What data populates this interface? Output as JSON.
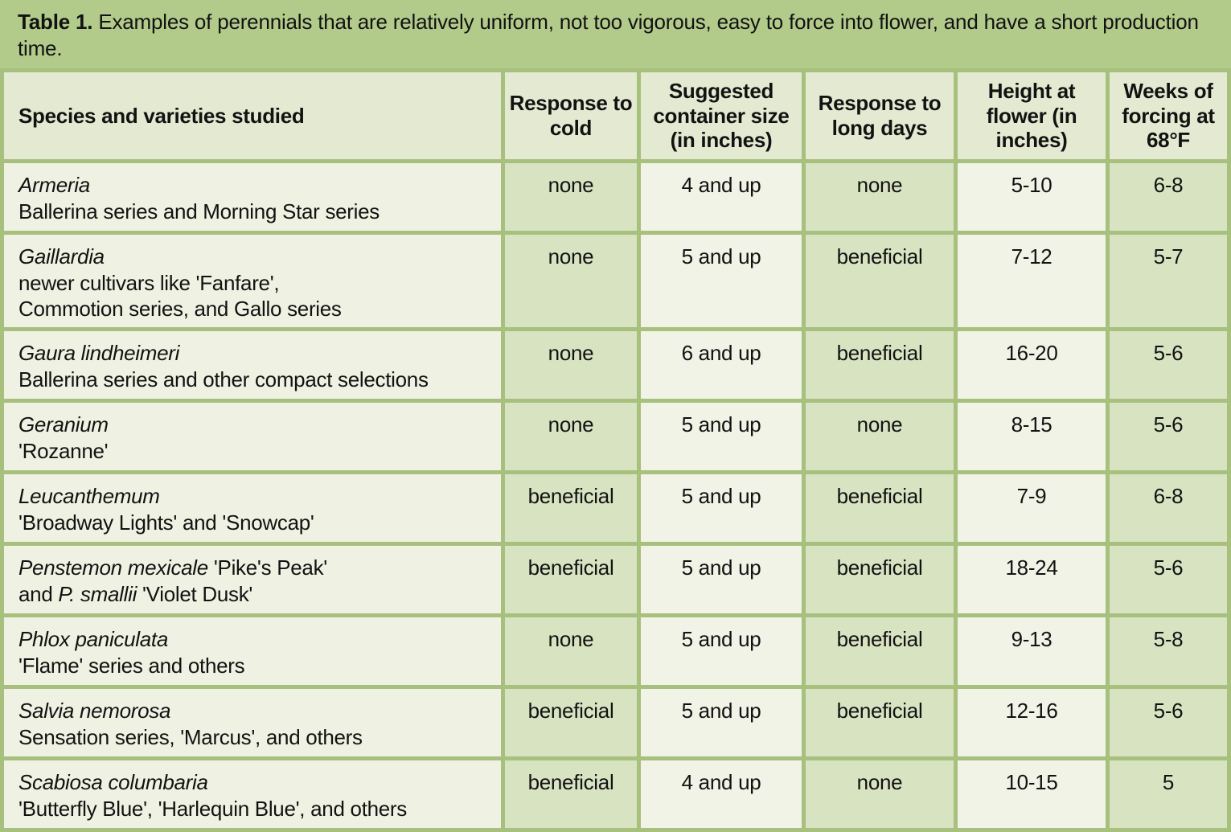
{
  "title": {
    "prefix": "Table 1.",
    "text": " Examples of perennials that are relatively uniform, not too vigorous, easy to force into flower, and have a short production time."
  },
  "table": {
    "columns": [
      {
        "key": "species",
        "label": "Species and varieties studied"
      },
      {
        "key": "cold",
        "label": "Response to cold"
      },
      {
        "key": "container",
        "label": "Suggested container size (in inches)"
      },
      {
        "key": "longdays",
        "label": "Response to long days"
      },
      {
        "key": "height",
        "label": "Height at flower (in inches)"
      },
      {
        "key": "weeks",
        "label": "Weeks of forcing at 68°F"
      }
    ],
    "rows": [
      {
        "species_lines": [
          [
            {
              "text": "Armeria",
              "italic": true
            }
          ],
          [
            {
              "text": "Ballerina series and Morning Star series",
              "italic": false
            }
          ]
        ],
        "cold": "none",
        "container": "4 and up",
        "longdays": "none",
        "height": "5-10",
        "weeks": "6-8"
      },
      {
        "species_lines": [
          [
            {
              "text": "Gaillardia",
              "italic": true
            }
          ],
          [
            {
              "text": "newer cultivars like 'Fanfare',",
              "italic": false
            }
          ],
          [
            {
              "text": "Commotion series, and Gallo series",
              "italic": false
            }
          ]
        ],
        "cold": "none",
        "container": "5 and up",
        "longdays": "beneficial",
        "height": "7-12",
        "weeks": "5-7"
      },
      {
        "species_lines": [
          [
            {
              "text": "Gaura lindheimeri",
              "italic": true
            }
          ],
          [
            {
              "text": "Ballerina series and other compact selections",
              "italic": false
            }
          ]
        ],
        "cold": "none",
        "container": "6 and up",
        "longdays": "beneficial",
        "height": "16-20",
        "weeks": "5-6"
      },
      {
        "species_lines": [
          [
            {
              "text": "Geranium",
              "italic": true
            }
          ],
          [
            {
              "text": "'Rozanne'",
              "italic": false
            }
          ]
        ],
        "cold": "none",
        "container": "5 and up",
        "longdays": "none",
        "height": "8-15",
        "weeks": "5-6"
      },
      {
        "species_lines": [
          [
            {
              "text": "Leucanthemum",
              "italic": true
            }
          ],
          [
            {
              "text": "'Broadway Lights' and 'Snowcap'",
              "italic": false
            }
          ]
        ],
        "cold": "beneficial",
        "container": "5 and up",
        "longdays": "beneficial",
        "height": "7-9",
        "weeks": "6-8"
      },
      {
        "species_lines": [
          [
            {
              "text": "Penstemon mexicale",
              "italic": true
            },
            {
              "text": " 'Pike's Peak'",
              "italic": false
            }
          ],
          [
            {
              "text": "and ",
              "italic": false
            },
            {
              "text": "P. smallii",
              "italic": true
            },
            {
              "text": " 'Violet Dusk'",
              "italic": false
            }
          ]
        ],
        "cold": "beneficial",
        "container": "5 and up",
        "longdays": "beneficial",
        "height": "18-24",
        "weeks": "5-6"
      },
      {
        "species_lines": [
          [
            {
              "text": "Phlox paniculata",
              "italic": true
            }
          ],
          [
            {
              "text": "'Flame' series and others",
              "italic": false
            }
          ]
        ],
        "cold": "none",
        "container": "5 and up",
        "longdays": "beneficial",
        "height": "9-13",
        "weeks": "5-8"
      },
      {
        "species_lines": [
          [
            {
              "text": "Salvia nemorosa",
              "italic": true
            }
          ],
          [
            {
              "text": "Sensation series, 'Marcus', and others",
              "italic": false
            }
          ]
        ],
        "cold": "beneficial",
        "container": "5 and up",
        "longdays": "beneficial",
        "height": "12-16",
        "weeks": "5-6"
      },
      {
        "species_lines": [
          [
            {
              "text": "Scabiosa columbaria",
              "italic": true
            }
          ],
          [
            {
              "text": "'Butterfly Blue', 'Harlequin Blue', and others",
              "italic": false
            }
          ]
        ],
        "cold": "beneficial",
        "container": "4 and up",
        "longdays": "none",
        "height": "10-15",
        "weeks": "5"
      }
    ]
  },
  "colors": {
    "title_bg": "#b2cb8b",
    "grid": "#a7c07d",
    "header_bg": "#e3ead1",
    "species_cell_bg": "#eff2e2",
    "light_cell_bg": "#f0f3e5",
    "green_cell_bg": "#d8e3c2",
    "text": "#121212"
  }
}
